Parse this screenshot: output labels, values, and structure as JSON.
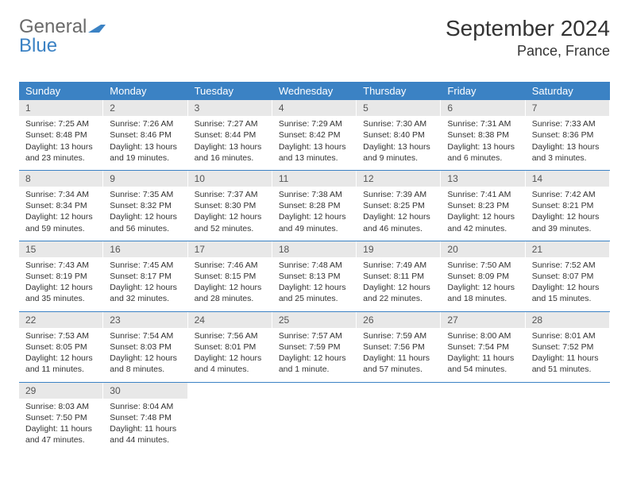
{
  "logo": {
    "text1": "General",
    "text2": "Blue"
  },
  "title": "September 2024",
  "location": "Pance, France",
  "colors": {
    "header_bg": "#3b82c4",
    "header_text": "#ffffff",
    "daynum_bg": "#e8e8e8",
    "border": "#3b82c4",
    "text": "#333333"
  },
  "day_names": [
    "Sunday",
    "Monday",
    "Tuesday",
    "Wednesday",
    "Thursday",
    "Friday",
    "Saturday"
  ],
  "weeks": [
    [
      {
        "n": "1",
        "sr": "Sunrise: 7:25 AM",
        "ss": "Sunset: 8:48 PM",
        "d1": "Daylight: 13 hours",
        "d2": "and 23 minutes."
      },
      {
        "n": "2",
        "sr": "Sunrise: 7:26 AM",
        "ss": "Sunset: 8:46 PM",
        "d1": "Daylight: 13 hours",
        "d2": "and 19 minutes."
      },
      {
        "n": "3",
        "sr": "Sunrise: 7:27 AM",
        "ss": "Sunset: 8:44 PM",
        "d1": "Daylight: 13 hours",
        "d2": "and 16 minutes."
      },
      {
        "n": "4",
        "sr": "Sunrise: 7:29 AM",
        "ss": "Sunset: 8:42 PM",
        "d1": "Daylight: 13 hours",
        "d2": "and 13 minutes."
      },
      {
        "n": "5",
        "sr": "Sunrise: 7:30 AM",
        "ss": "Sunset: 8:40 PM",
        "d1": "Daylight: 13 hours",
        "d2": "and 9 minutes."
      },
      {
        "n": "6",
        "sr": "Sunrise: 7:31 AM",
        "ss": "Sunset: 8:38 PM",
        "d1": "Daylight: 13 hours",
        "d2": "and 6 minutes."
      },
      {
        "n": "7",
        "sr": "Sunrise: 7:33 AM",
        "ss": "Sunset: 8:36 PM",
        "d1": "Daylight: 13 hours",
        "d2": "and 3 minutes."
      }
    ],
    [
      {
        "n": "8",
        "sr": "Sunrise: 7:34 AM",
        "ss": "Sunset: 8:34 PM",
        "d1": "Daylight: 12 hours",
        "d2": "and 59 minutes."
      },
      {
        "n": "9",
        "sr": "Sunrise: 7:35 AM",
        "ss": "Sunset: 8:32 PM",
        "d1": "Daylight: 12 hours",
        "d2": "and 56 minutes."
      },
      {
        "n": "10",
        "sr": "Sunrise: 7:37 AM",
        "ss": "Sunset: 8:30 PM",
        "d1": "Daylight: 12 hours",
        "d2": "and 52 minutes."
      },
      {
        "n": "11",
        "sr": "Sunrise: 7:38 AM",
        "ss": "Sunset: 8:28 PM",
        "d1": "Daylight: 12 hours",
        "d2": "and 49 minutes."
      },
      {
        "n": "12",
        "sr": "Sunrise: 7:39 AM",
        "ss": "Sunset: 8:25 PM",
        "d1": "Daylight: 12 hours",
        "d2": "and 46 minutes."
      },
      {
        "n": "13",
        "sr": "Sunrise: 7:41 AM",
        "ss": "Sunset: 8:23 PM",
        "d1": "Daylight: 12 hours",
        "d2": "and 42 minutes."
      },
      {
        "n": "14",
        "sr": "Sunrise: 7:42 AM",
        "ss": "Sunset: 8:21 PM",
        "d1": "Daylight: 12 hours",
        "d2": "and 39 minutes."
      }
    ],
    [
      {
        "n": "15",
        "sr": "Sunrise: 7:43 AM",
        "ss": "Sunset: 8:19 PM",
        "d1": "Daylight: 12 hours",
        "d2": "and 35 minutes."
      },
      {
        "n": "16",
        "sr": "Sunrise: 7:45 AM",
        "ss": "Sunset: 8:17 PM",
        "d1": "Daylight: 12 hours",
        "d2": "and 32 minutes."
      },
      {
        "n": "17",
        "sr": "Sunrise: 7:46 AM",
        "ss": "Sunset: 8:15 PM",
        "d1": "Daylight: 12 hours",
        "d2": "and 28 minutes."
      },
      {
        "n": "18",
        "sr": "Sunrise: 7:48 AM",
        "ss": "Sunset: 8:13 PM",
        "d1": "Daylight: 12 hours",
        "d2": "and 25 minutes."
      },
      {
        "n": "19",
        "sr": "Sunrise: 7:49 AM",
        "ss": "Sunset: 8:11 PM",
        "d1": "Daylight: 12 hours",
        "d2": "and 22 minutes."
      },
      {
        "n": "20",
        "sr": "Sunrise: 7:50 AM",
        "ss": "Sunset: 8:09 PM",
        "d1": "Daylight: 12 hours",
        "d2": "and 18 minutes."
      },
      {
        "n": "21",
        "sr": "Sunrise: 7:52 AM",
        "ss": "Sunset: 8:07 PM",
        "d1": "Daylight: 12 hours",
        "d2": "and 15 minutes."
      }
    ],
    [
      {
        "n": "22",
        "sr": "Sunrise: 7:53 AM",
        "ss": "Sunset: 8:05 PM",
        "d1": "Daylight: 12 hours",
        "d2": "and 11 minutes."
      },
      {
        "n": "23",
        "sr": "Sunrise: 7:54 AM",
        "ss": "Sunset: 8:03 PM",
        "d1": "Daylight: 12 hours",
        "d2": "and 8 minutes."
      },
      {
        "n": "24",
        "sr": "Sunrise: 7:56 AM",
        "ss": "Sunset: 8:01 PM",
        "d1": "Daylight: 12 hours",
        "d2": "and 4 minutes."
      },
      {
        "n": "25",
        "sr": "Sunrise: 7:57 AM",
        "ss": "Sunset: 7:59 PM",
        "d1": "Daylight: 12 hours",
        "d2": "and 1 minute."
      },
      {
        "n": "26",
        "sr": "Sunrise: 7:59 AM",
        "ss": "Sunset: 7:56 PM",
        "d1": "Daylight: 11 hours",
        "d2": "and 57 minutes."
      },
      {
        "n": "27",
        "sr": "Sunrise: 8:00 AM",
        "ss": "Sunset: 7:54 PM",
        "d1": "Daylight: 11 hours",
        "d2": "and 54 minutes."
      },
      {
        "n": "28",
        "sr": "Sunrise: 8:01 AM",
        "ss": "Sunset: 7:52 PM",
        "d1": "Daylight: 11 hours",
        "d2": "and 51 minutes."
      }
    ],
    [
      {
        "n": "29",
        "sr": "Sunrise: 8:03 AM",
        "ss": "Sunset: 7:50 PM",
        "d1": "Daylight: 11 hours",
        "d2": "and 47 minutes."
      },
      {
        "n": "30",
        "sr": "Sunrise: 8:04 AM",
        "ss": "Sunset: 7:48 PM",
        "d1": "Daylight: 11 hours",
        "d2": "and 44 minutes."
      },
      null,
      null,
      null,
      null,
      null
    ]
  ]
}
